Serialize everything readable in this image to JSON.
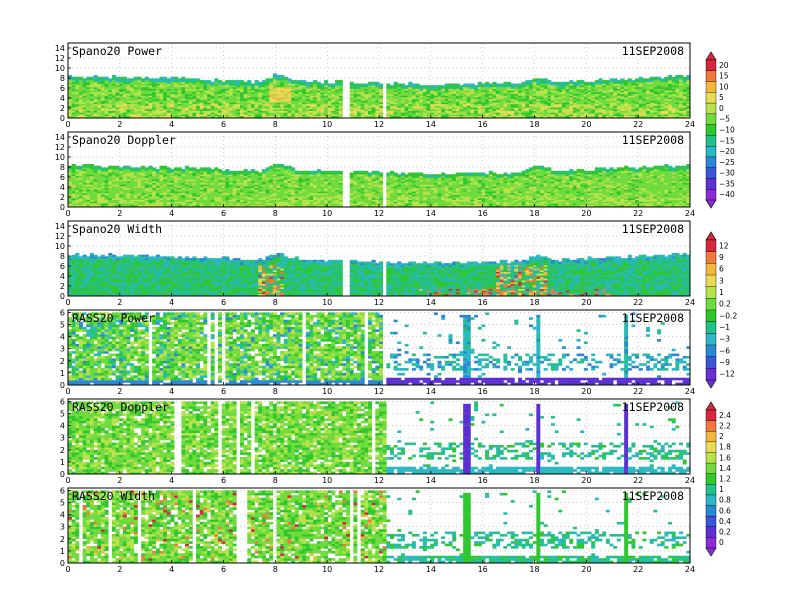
{
  "chart_data": [
    {
      "type": "heatmap",
      "title": "Spano20 Power",
      "date": "11SEP2008",
      "x_ticks": [
        0,
        2,
        4,
        6,
        8,
        10,
        12,
        14,
        16,
        18,
        20,
        22,
        24
      ],
      "y_ticks": [
        0,
        2,
        4,
        6,
        8,
        10,
        12,
        14
      ],
      "xlim": [
        0,
        24
      ],
      "ylim": [
        0,
        15
      ],
      "grid": true,
      "colorbar": "cb_power",
      "top_profile": [
        [
          0,
          8.2
        ],
        [
          4,
          7.8
        ],
        [
          6,
          7.4
        ],
        [
          7.5,
          7.0
        ],
        [
          8,
          8.5
        ],
        [
          9,
          7.2
        ],
        [
          12,
          6.8
        ],
        [
          14,
          6.5
        ],
        [
          17.5,
          6.8
        ],
        [
          18,
          8.0
        ],
        [
          19,
          7.0
        ],
        [
          21,
          7.6
        ],
        [
          24,
          8.3
        ]
      ],
      "gaps_x": [
        10.7,
        10.85,
        12.15
      ]
    },
    {
      "type": "heatmap",
      "title": "Spano20 Doppler",
      "date": "11SEP2008",
      "x_ticks": [
        0,
        2,
        4,
        6,
        8,
        10,
        12,
        14,
        16,
        18,
        20,
        22,
        24
      ],
      "y_ticks": [
        0,
        2,
        4,
        6,
        8,
        10,
        12,
        14
      ],
      "xlim": [
        0,
        24
      ],
      "ylim": [
        0,
        15
      ],
      "grid": true,
      "colorbar": "cb_power",
      "top_profile": [
        [
          0,
          8.2
        ],
        [
          4,
          7.8
        ],
        [
          6,
          7.4
        ],
        [
          7.5,
          7.0
        ],
        [
          8,
          8.5
        ],
        [
          9,
          7.2
        ],
        [
          12,
          6.8
        ],
        [
          14,
          6.5
        ],
        [
          17.5,
          6.8
        ],
        [
          18,
          8.0
        ],
        [
          19,
          7.0
        ],
        [
          21,
          7.6
        ],
        [
          24,
          8.3
        ]
      ],
      "gaps_x": [
        10.7,
        10.85,
        12.15
      ]
    },
    {
      "type": "heatmap",
      "title": "Spano20 Width",
      "date": "11SEP2008",
      "x_ticks": [
        0,
        2,
        4,
        6,
        8,
        10,
        12,
        14,
        16,
        18,
        20,
        22,
        24
      ],
      "y_ticks": [
        0,
        2,
        4,
        6,
        8,
        10,
        12,
        14
      ],
      "xlim": [
        0,
        24
      ],
      "ylim": [
        0,
        15
      ],
      "grid": true,
      "colorbar": "cb_width",
      "top_profile": [
        [
          0,
          8.2
        ],
        [
          4,
          7.8
        ],
        [
          6,
          7.4
        ],
        [
          7.5,
          7.0
        ],
        [
          8,
          8.5
        ],
        [
          9,
          7.2
        ],
        [
          12,
          6.8
        ],
        [
          14,
          6.5
        ],
        [
          17.5,
          6.8
        ],
        [
          18,
          8.0
        ],
        [
          19,
          7.0
        ],
        [
          21,
          7.6
        ],
        [
          24,
          8.3
        ]
      ],
      "gaps_x": [
        10.7,
        10.85,
        12.15
      ]
    },
    {
      "type": "heatmap",
      "title": "RASS20 Power",
      "date": "11SEP2008",
      "x_ticks": [
        0,
        2,
        4,
        6,
        8,
        10,
        12,
        14,
        16,
        18,
        20,
        22,
        24
      ],
      "y_ticks": [
        0,
        1,
        2,
        3,
        4,
        5,
        6
      ],
      "xlim": [
        0,
        24
      ],
      "ylim": [
        0,
        6.2
      ],
      "grid": true,
      "colorbar": "cb_width",
      "dense_until_hour": 12.3,
      "spikes_x": [
        15.4,
        18.1,
        21.5
      ]
    },
    {
      "type": "heatmap",
      "title": "RASS20 Doppler",
      "date": "11SEP2008",
      "x_ticks": [
        0,
        2,
        4,
        6,
        8,
        10,
        12,
        14,
        16,
        18,
        20,
        22,
        24
      ],
      "y_ticks": [
        0,
        1,
        2,
        3,
        4,
        5,
        6
      ],
      "xlim": [
        0,
        24
      ],
      "ylim": [
        0,
        6.2
      ],
      "grid": true,
      "colorbar": "cb_rass",
      "dense_until_hour": 12.3,
      "spikes_x": [
        15.4,
        18.1,
        21.5
      ]
    },
    {
      "type": "heatmap",
      "title": "RASS20 Width",
      "date": "11SEP2008",
      "x_ticks": [
        0,
        2,
        4,
        6,
        8,
        10,
        12,
        14,
        16,
        18,
        20,
        22,
        24
      ],
      "y_ticks": [
        0,
        1,
        2,
        3,
        4,
        5,
        6
      ],
      "xlim": [
        0,
        24
      ],
      "ylim": [
        0,
        6.2
      ],
      "grid": true,
      "colorbar": "cb_rass",
      "dense_until_hour": 12.3,
      "spikes_x": [
        15.4,
        18.1,
        21.5
      ]
    }
  ],
  "colorbars": {
    "cb_power": {
      "labels": [
        "20",
        "15",
        "10",
        "5",
        "0",
        "-5",
        "-10",
        "-15",
        "-20",
        "-25",
        "-30",
        "-35",
        "-40"
      ],
      "colors": [
        "#d7263d",
        "#f1783a",
        "#f5b73b",
        "#e8dc54",
        "#b8e24a",
        "#6fdc3c",
        "#2ec72e",
        "#22c08a",
        "#29b8c4",
        "#2b87d6",
        "#3a55d8",
        "#5b2fd1",
        "#8a2bd6"
      ]
    },
    "cb_width": {
      "labels": [
        "12",
        "9",
        "6",
        "3",
        "1",
        "0.2",
        "-0.2",
        "-1",
        "-3",
        "-6",
        "-9",
        "-12"
      ],
      "colors": [
        "#d7263d",
        "#f1783a",
        "#f5b73b",
        "#e8dc54",
        "#b8e24a",
        "#6fdc3c",
        "#2ec72e",
        "#22c08a",
        "#29b8c4",
        "#2b87d6",
        "#3a55d8",
        "#6a2fd3"
      ]
    },
    "cb_rass": {
      "labels": [
        "2.4",
        "2.2",
        "2",
        "1.8",
        "1.6",
        "1.4",
        "1.2",
        "1",
        "0.8",
        "0.6",
        "0.4",
        "0.2",
        "0"
      ],
      "colors": [
        "#d7263d",
        "#f1783a",
        "#f5b73b",
        "#e8dc54",
        "#b8e24a",
        "#6fdc3c",
        "#2ec72e",
        "#22c08a",
        "#29b8c4",
        "#2b87d6",
        "#3a55d8",
        "#5b2fd1",
        "#8a2bd6"
      ]
    }
  }
}
